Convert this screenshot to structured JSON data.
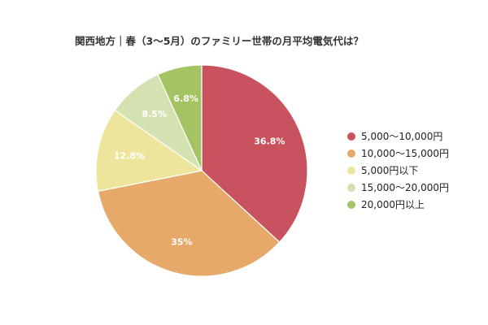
{
  "chart_data": {
    "type": "pie",
    "title": "関西地方｜春（3〜5月）のファミリー世帯の月平均電気代は？",
    "slices": [
      {
        "label": "5,000〜10,000円",
        "value": 36.8,
        "display": "36.8%",
        "color": "#c8525e"
      },
      {
        "label": "10,000〜15,000円",
        "value": 35,
        "display": "35%",
        "color": "#e6a969"
      },
      {
        "label": "5,000円以下",
        "value": 12.8,
        "display": "12.8%",
        "color": "#ede59c"
      },
      {
        "label": "15,000〜20,000円",
        "value": 8.5,
        "display": "8.5%",
        "color": "#d4e2b1"
      },
      {
        "label": "20,000円以上",
        "value": 6.8,
        "display": "6.8%",
        "color": "#a4c463"
      }
    ],
    "legend_position": "right",
    "start": "top, clockwise"
  }
}
